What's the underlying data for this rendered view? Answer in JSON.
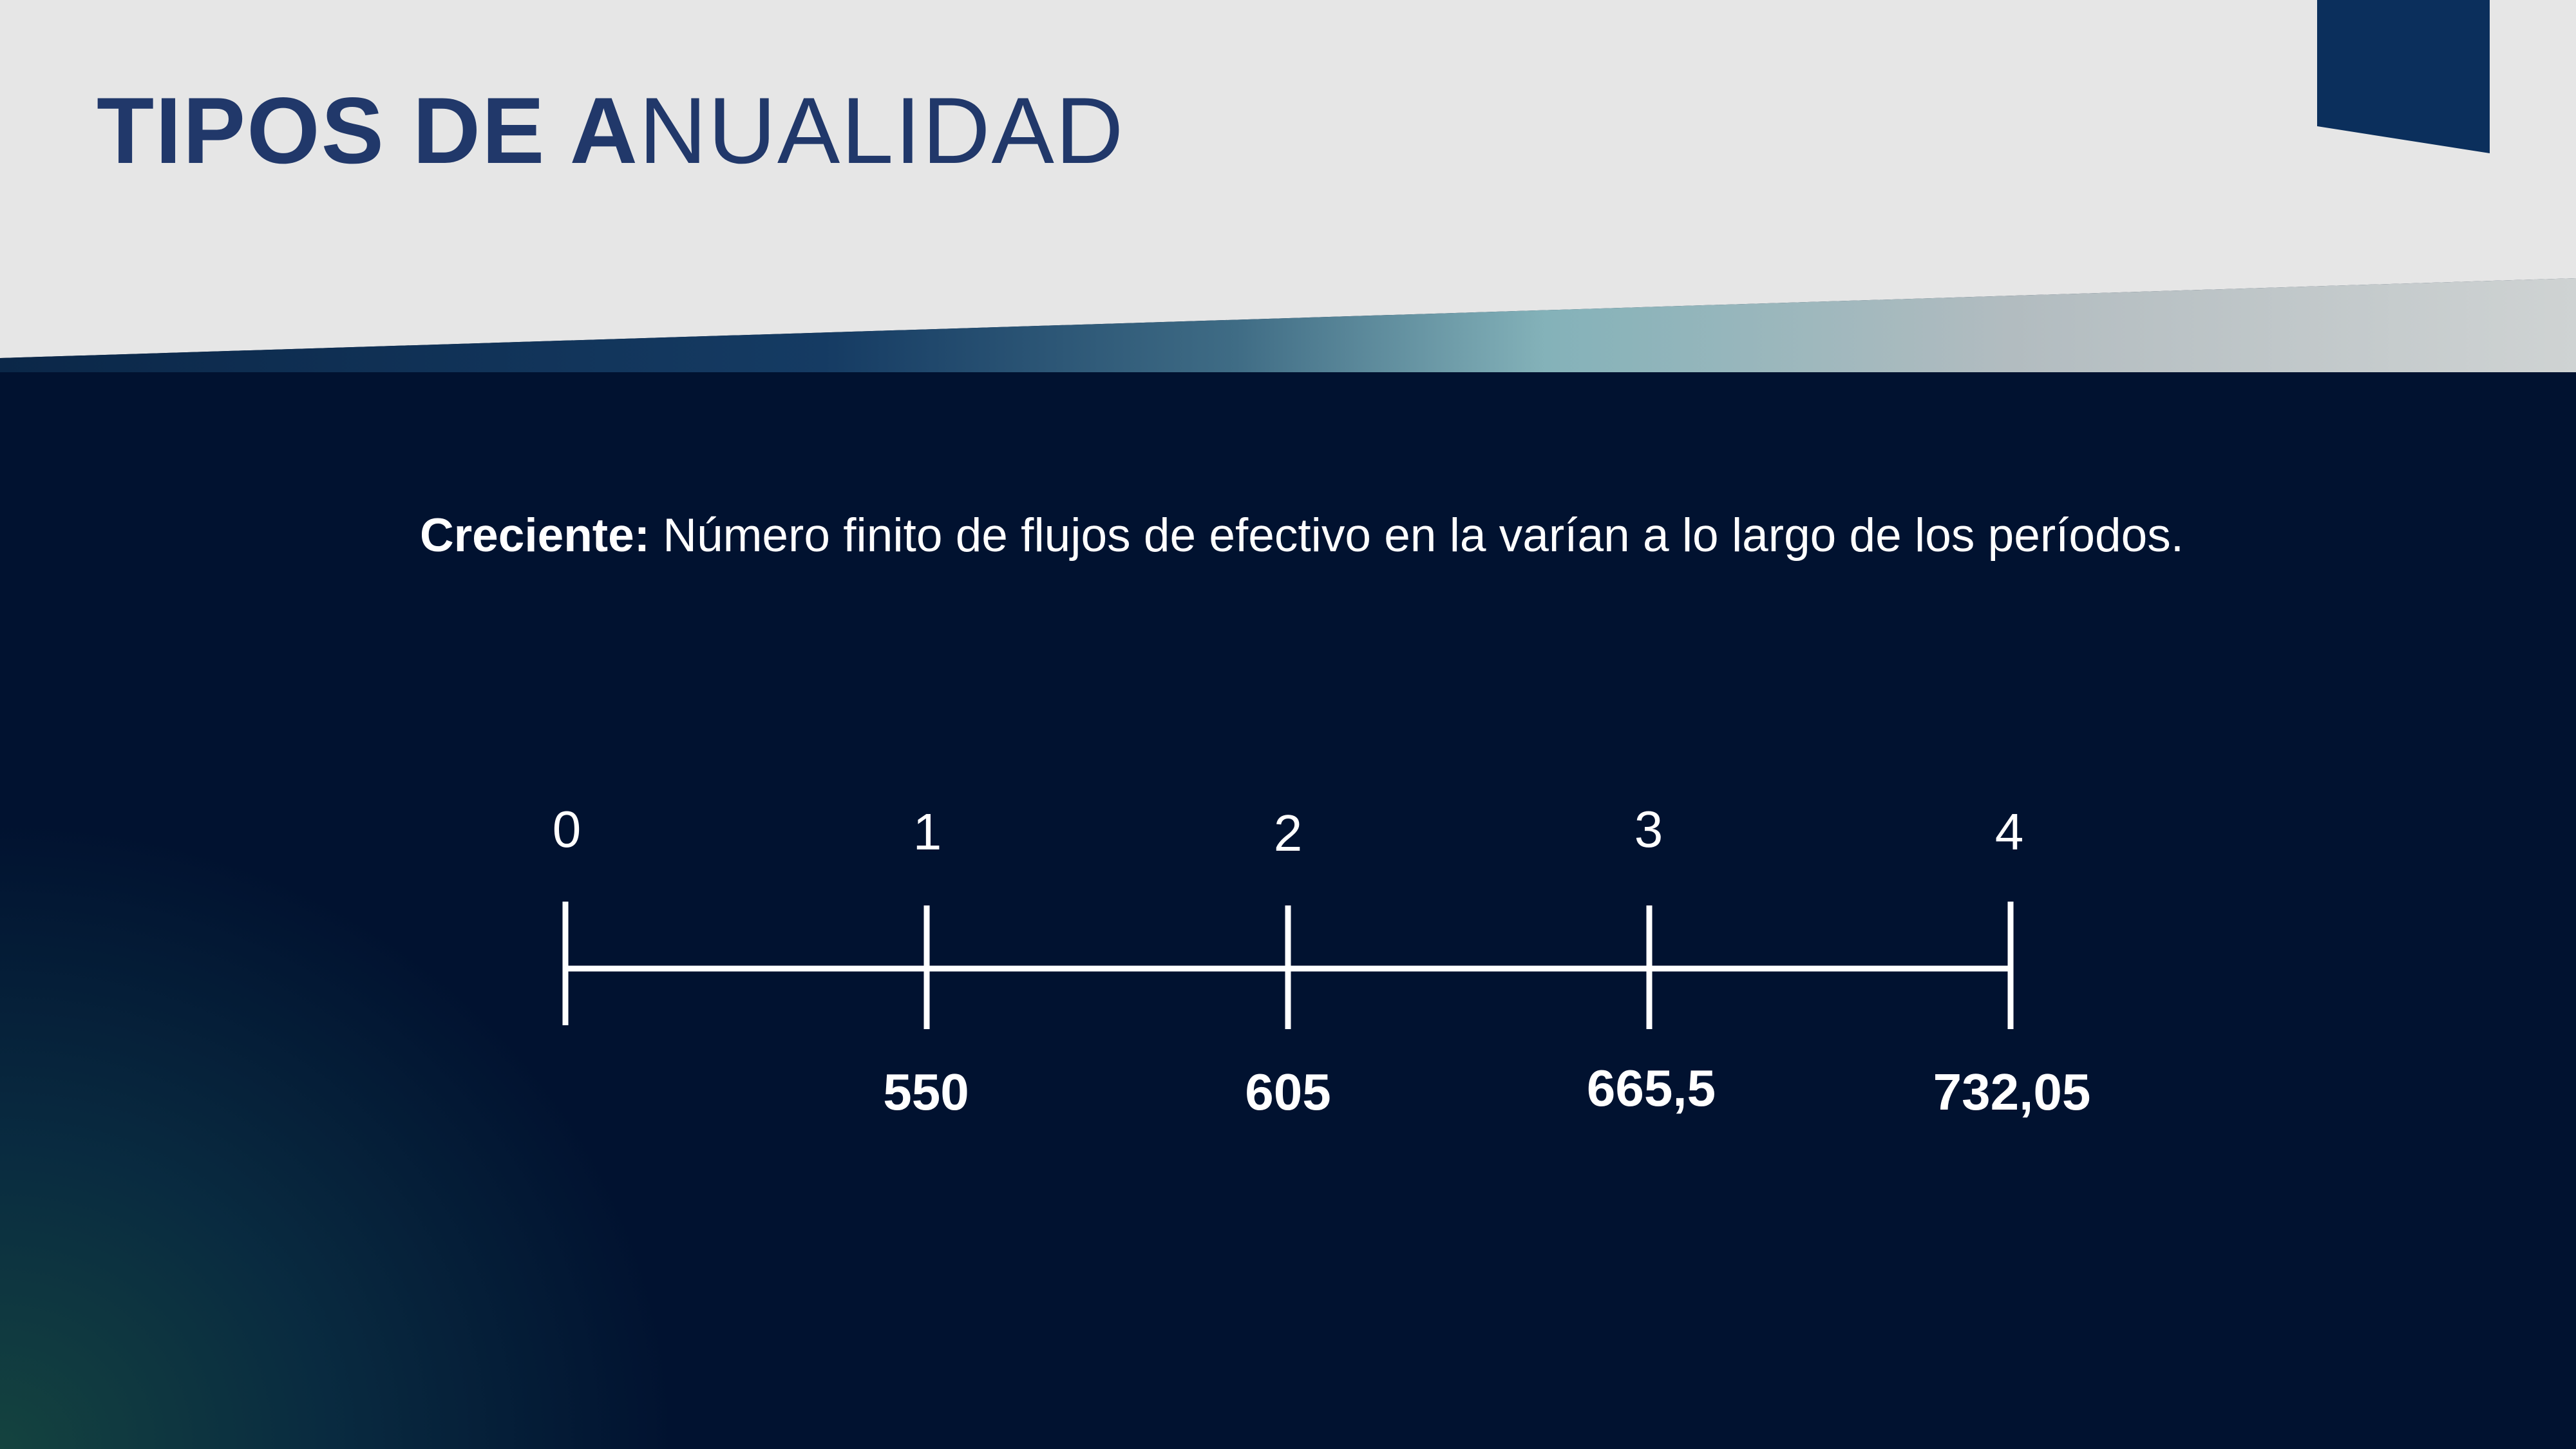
{
  "header": {
    "title_bold": "TIPOS DE A",
    "title_light": "NUALIDAD"
  },
  "content": {
    "term": "Creciente:",
    "definition": " Número finito de flujos de efectivo en la varían a lo largo de los períodos."
  },
  "timeline": {
    "periods": [
      "0",
      "1",
      "2",
      "3",
      "4"
    ],
    "values": [
      "",
      "550",
      "605",
      "665,5",
      "732,05"
    ]
  },
  "colors": {
    "title": "#21386a",
    "background": "#011230",
    "header_band": "#e6e6e6",
    "corner_tab": "#0b2f5c",
    "line": "#ffffff"
  }
}
